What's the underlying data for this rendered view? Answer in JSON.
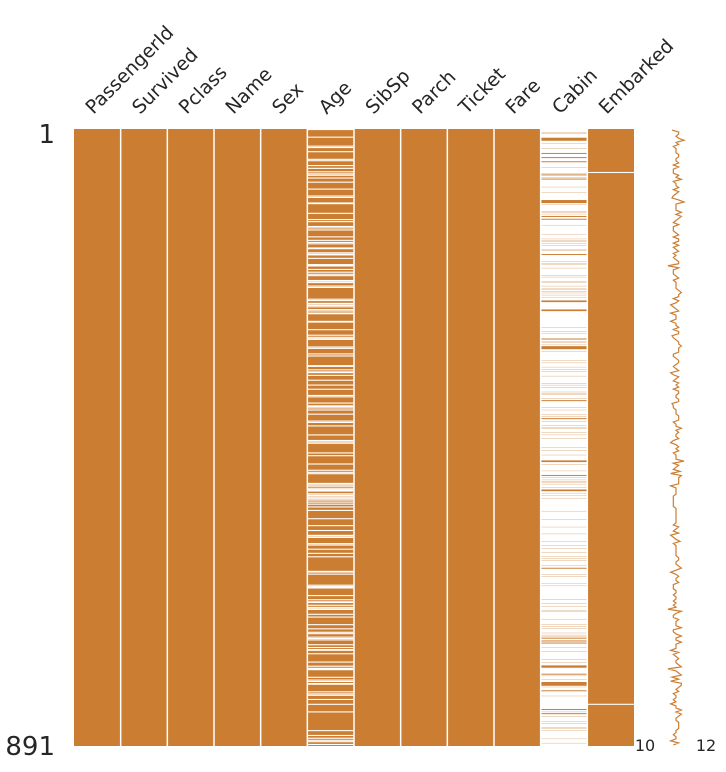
{
  "chart_data": {
    "type": "heatmap",
    "title": "",
    "columns": [
      "PassengerId",
      "Survived",
      "Pclass",
      "Name",
      "Sex",
      "Age",
      "SibSp",
      "Parch",
      "Ticket",
      "Fare",
      "Cabin",
      "Embarked"
    ],
    "rows": 891,
    "row_labels": [
      "1",
      "891"
    ],
    "missing_counts": [
      0,
      0,
      0,
      0,
      0,
      177,
      0,
      0,
      0,
      0,
      687,
      2
    ],
    "missing_rows_embarked": [
      62,
      830
    ],
    "sparkline": {
      "min_label": "10",
      "max_label": "12",
      "min": 10,
      "max": 12
    },
    "colors": {
      "present": "#cb7d32",
      "missing": "#ffffff"
    },
    "grid": false
  }
}
